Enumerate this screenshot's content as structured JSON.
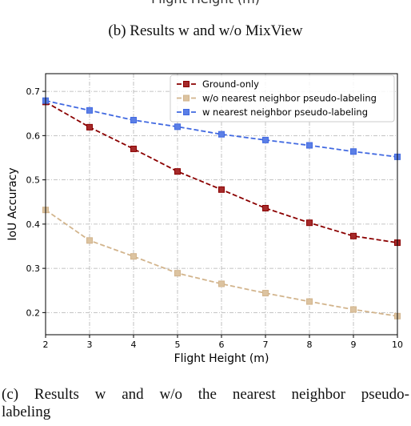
{
  "top_cropped_text": "Flight Height (m)",
  "caption_b": "(b) Results w and w/o MixView",
  "caption_c": {
    "words_line1": [
      "(c)",
      "Results",
      "w",
      "and",
      "w/o",
      "the",
      "nearest",
      "neighbor",
      "pseudo-"
    ],
    "line2": "labeling"
  },
  "chart_data": {
    "type": "line",
    "title": "",
    "xlabel": "Flight Height (m)",
    "ylabel": "IoU Accuracy",
    "x": [
      2,
      3,
      4,
      5,
      6,
      7,
      8,
      9,
      10
    ],
    "xlim": [
      2,
      10
    ],
    "ylim": [
      0.15,
      0.74
    ],
    "x_ticks": [
      "2",
      "3",
      "4",
      "5",
      "6",
      "7",
      "8",
      "9",
      "10"
    ],
    "y_ticks": [
      0.2,
      0.3,
      0.4,
      0.5,
      0.6,
      0.7
    ],
    "y_tick_labels": [
      "0.2",
      "0.3",
      "0.4",
      "0.5",
      "0.6",
      "0.7"
    ],
    "grid": true,
    "legend_position": "top-right",
    "series": [
      {
        "name": "Ground-only",
        "color": "#8b0000",
        "marker_fill": "#a52a2a",
        "values": [
          0.676,
          0.619,
          0.57,
          0.519,
          0.478,
          0.436,
          0.403,
          0.373,
          0.358
        ]
      },
      {
        "name": "w/o nearest neighbor pseudo-labeling",
        "color": "#d2b48c",
        "marker_fill": "#dcc3a0",
        "values": [
          0.432,
          0.363,
          0.327,
          0.289,
          0.265,
          0.244,
          0.225,
          0.207,
          0.192
        ]
      },
      {
        "name": "w nearest neighbor pseudo-labeling",
        "color": "#4169e1",
        "marker_fill": "#5b7fe6",
        "values": [
          0.679,
          0.657,
          0.635,
          0.62,
          0.603,
          0.59,
          0.578,
          0.564,
          0.552
        ]
      }
    ]
  }
}
